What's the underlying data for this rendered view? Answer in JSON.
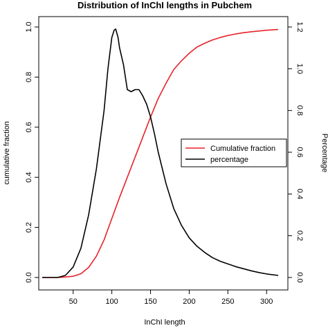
{
  "chart_data": {
    "type": "line",
    "title": "Distribution of InChI lengths in Pubchem",
    "xlabel": "InChI length",
    "ylabel_left": "cumulative fraction",
    "ylabel_right": "Percentage",
    "xlim": [
      0,
      325
    ],
    "ylim_left": [
      0,
      1.0
    ],
    "ylim_right": [
      0,
      1.2
    ],
    "x_ticks": [
      "50",
      "100",
      "150",
      "200",
      "250",
      "300"
    ],
    "y_left_ticks": [
      "0.0",
      "0.2",
      "0.4",
      "0.6",
      "0.8",
      "1.0"
    ],
    "y_right_ticks": [
      "0.0",
      "0.2",
      "0.4",
      "0.6",
      "0.8",
      "1.0",
      "1.2"
    ],
    "legend_position": "right",
    "series": [
      {
        "name": "Cumulative fraction",
        "axis": "left",
        "color": "#e8212a",
        "x": [
          10,
          30,
          40,
          50,
          60,
          70,
          80,
          90,
          100,
          110,
          120,
          130,
          140,
          150,
          160,
          170,
          180,
          190,
          200,
          210,
          220,
          230,
          240,
          250,
          260,
          270,
          280,
          290,
          300,
          315
        ],
        "y": [
          0.0,
          0.0,
          0.002,
          0.005,
          0.015,
          0.04,
          0.085,
          0.15,
          0.235,
          0.32,
          0.4,
          0.48,
          0.56,
          0.64,
          0.715,
          0.775,
          0.83,
          0.865,
          0.895,
          0.92,
          0.935,
          0.948,
          0.958,
          0.966,
          0.972,
          0.977,
          0.981,
          0.984,
          0.987,
          0.99
        ]
      },
      {
        "name": "percentage",
        "axis": "right",
        "color": "#000000",
        "x": [
          10,
          30,
          40,
          50,
          60,
          70,
          80,
          90,
          95,
          100,
          103,
          105,
          108,
          110,
          115,
          120,
          125,
          130,
          135,
          140,
          145,
          150,
          155,
          160,
          170,
          180,
          190,
          200,
          210,
          220,
          230,
          240,
          250,
          260,
          270,
          280,
          290,
          300,
          315
        ],
        "y": [
          0.0,
          0.0,
          0.01,
          0.05,
          0.14,
          0.3,
          0.52,
          0.8,
          1.0,
          1.15,
          1.185,
          1.19,
          1.15,
          1.1,
          1.02,
          0.9,
          0.89,
          0.9,
          0.9,
          0.87,
          0.83,
          0.77,
          0.69,
          0.6,
          0.45,
          0.33,
          0.25,
          0.19,
          0.15,
          0.12,
          0.095,
          0.078,
          0.065,
          0.052,
          0.042,
          0.032,
          0.024,
          0.017,
          0.01
        ]
      }
    ]
  }
}
